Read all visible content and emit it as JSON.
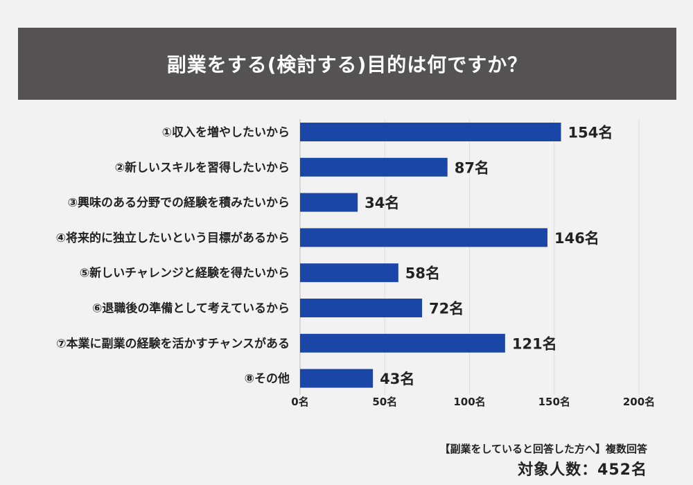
{
  "chart_data": {
    "type": "bar",
    "orientation": "horizontal",
    "title": "副業をする(検討する)目的は何ですか？",
    "categories": [
      "①収入を増やしたいから",
      "②新しいスキルを習得したいから",
      "③興味のある分野での経験を積みたいから",
      "④将来的に独立したいという目標があるから",
      "⑤新しいチャレンジと経験を得たいから",
      "⑥退職後の準備として考えているから",
      "⑦本業に副業の経験を活かすチャンスがある",
      "⑧その他"
    ],
    "values": [
      154,
      87,
      34,
      146,
      58,
      72,
      121,
      43
    ],
    "value_labels": [
      "154名",
      "87名",
      "34名",
      "146名",
      "58名",
      "72名",
      "121名",
      "43名"
    ],
    "xlim": [
      0,
      200
    ],
    "ticks": [
      0,
      50,
      100,
      150,
      200
    ],
    "tick_labels": [
      "0名",
      "50名",
      "100名",
      "150名",
      "200名"
    ],
    "grid": true,
    "bar_color": "#1a46a8",
    "grid_color": "#dddddd"
  },
  "footnote": {
    "line1": "【副業をしていると回答した方へ】複数回答",
    "line2": "対象人数：452名"
  }
}
